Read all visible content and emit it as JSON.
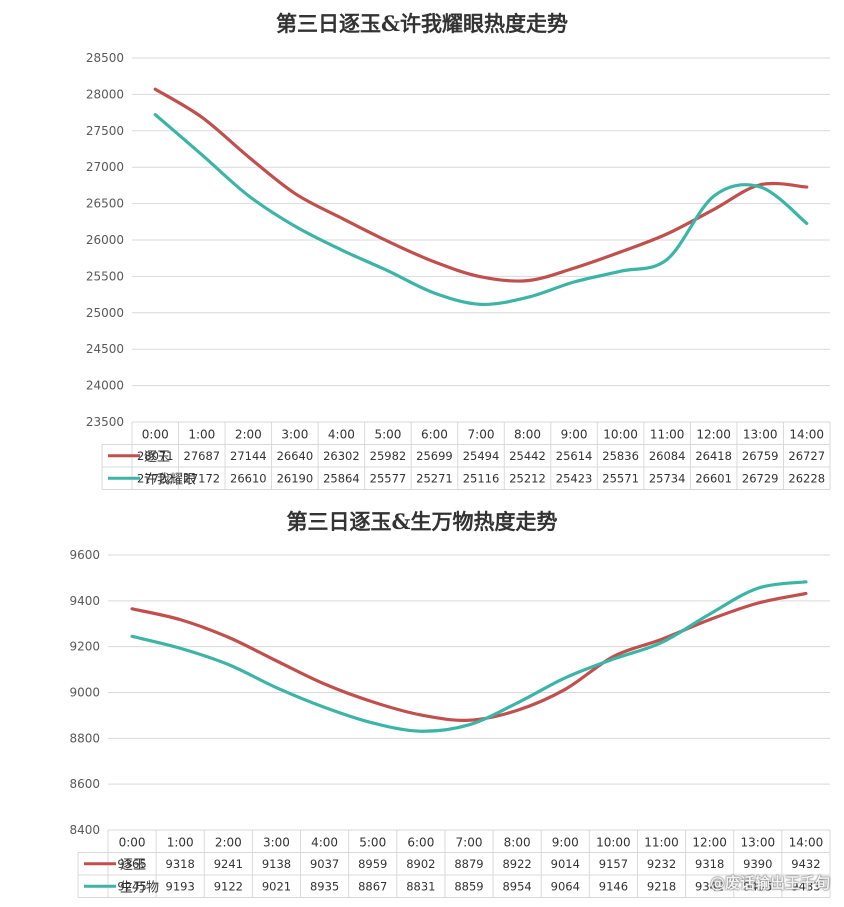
{
  "chart_data": [
    {
      "type": "line",
      "title": "第三日逐玉&许我耀眼热度走势",
      "categories": [
        "0:00",
        "1:00",
        "2:00",
        "3:00",
        "4:00",
        "5:00",
        "6:00",
        "7:00",
        "8:00",
        "9:00",
        "10:00",
        "11:00",
        "12:00",
        "13:00",
        "14:00"
      ],
      "series": [
        {
          "name": "逐玉",
          "color": "#c0504d",
          "values": [
            28071,
            27687,
            27144,
            26640,
            26302,
            25982,
            25699,
            25494,
            25442,
            25614,
            25836,
            26084,
            26418,
            26759,
            26727
          ]
        },
        {
          "name": "许我耀眼",
          "color": "#3cb4a6",
          "values": [
            27722,
            27172,
            26610,
            26190,
            25864,
            25577,
            25271,
            25116,
            25212,
            25423,
            25571,
            25734,
            26601,
            26729,
            26228
          ]
        }
      ],
      "ylim": [
        23500,
        28500
      ],
      "yticks": [
        23500,
        24000,
        24500,
        25000,
        25500,
        26000,
        26500,
        27000,
        27500,
        28000,
        28500
      ],
      "grid": true,
      "legend": "data-table",
      "xlabel": "",
      "ylabel": ""
    },
    {
      "type": "line",
      "title": "第三日逐玉&生万物热度走势",
      "categories": [
        "0:00",
        "1:00",
        "2:00",
        "3:00",
        "4:00",
        "5:00",
        "6:00",
        "7:00",
        "8:00",
        "9:00",
        "10:00",
        "11:00",
        "12:00",
        "13:00",
        "14:00"
      ],
      "series": [
        {
          "name": "逐玉",
          "color": "#c0504d",
          "values": [
            9365,
            9318,
            9241,
            9138,
            9037,
            8959,
            8902,
            8879,
            8922,
            9014,
            9157,
            9232,
            9318,
            9390,
            9432
          ]
        },
        {
          "name": "生万物",
          "color": "#3cb4a6",
          "values": [
            9245,
            9193,
            9122,
            9021,
            8935,
            8867,
            8831,
            8859,
            8954,
            9064,
            9146,
            9218,
            9342,
            9455,
            9483
          ]
        }
      ],
      "ylim": [
        8400,
        9600
      ],
      "yticks": [
        8400,
        8600,
        8800,
        9000,
        9200,
        9400,
        9600
      ],
      "grid": true,
      "legend": "data-table",
      "xlabel": "",
      "ylabel": ""
    }
  ],
  "watermark": "@废话输出王千旬"
}
